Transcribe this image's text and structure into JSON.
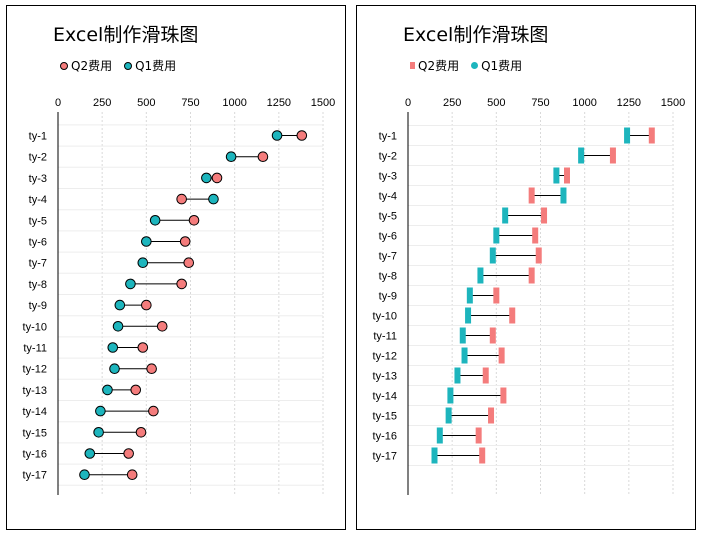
{
  "chart_data": [
    {
      "type": "scatter",
      "variant": "dumbbell",
      "marker": "circle",
      "title": "Excel制作滑珠图",
      "legend": [
        "Q2费用",
        "Q1费用"
      ],
      "legend_position": "top-left",
      "x_ticks": [
        "0",
        "250",
        "500",
        "750",
        "1000",
        "1250",
        "1500"
      ],
      "xlim": [
        0,
        1500
      ],
      "grid": true,
      "categories": [
        "ty-1",
        "ty-2",
        "ty-3",
        "ty-4",
        "ty-5",
        "ty-6",
        "ty-7",
        "ty-8",
        "ty-9",
        "ty-10",
        "ty-11",
        "ty-12",
        "ty-13",
        "ty-14",
        "ty-15",
        "ty-16",
        "ty-17"
      ],
      "series": [
        {
          "name": "Q2费用",
          "color": "#f47c7c",
          "values": [
            1380,
            1160,
            900,
            700,
            770,
            720,
            740,
            700,
            500,
            590,
            480,
            530,
            440,
            540,
            470,
            400,
            420
          ]
        },
        {
          "name": "Q1费用",
          "color": "#1db5bd",
          "values": [
            1240,
            980,
            840,
            880,
            550,
            500,
            480,
            410,
            350,
            340,
            310,
            320,
            280,
            240,
            230,
            180,
            150
          ]
        }
      ]
    },
    {
      "type": "scatter",
      "variant": "dumbbell",
      "marker": "bar",
      "title": "Excel制作滑珠图",
      "legend": [
        "Q2费用",
        "Q1费用"
      ],
      "legend_position": "top-left",
      "x_ticks": [
        "0",
        "250",
        "500",
        "750",
        "1000",
        "1250",
        "1500"
      ],
      "xlim": [
        0,
        1500
      ],
      "grid": true,
      "categories": [
        "ty-1",
        "ty-2",
        "ty-3",
        "ty-4",
        "ty-5",
        "ty-6",
        "ty-7",
        "ty-8",
        "ty-9",
        "ty-10",
        "ty-11",
        "ty-12",
        "ty-13",
        "ty-14",
        "ty-15",
        "ty-16",
        "ty-17"
      ],
      "series": [
        {
          "name": "Q2费用",
          "color": "#f47c7c",
          "values": [
            1380,
            1160,
            900,
            700,
            770,
            720,
            740,
            700,
            500,
            590,
            480,
            530,
            440,
            540,
            470,
            400,
            420
          ]
        },
        {
          "name": "Q1费用",
          "color": "#1db5bd",
          "values": [
            1240,
            980,
            840,
            880,
            550,
            500,
            480,
            410,
            350,
            340,
            310,
            320,
            280,
            240,
            230,
            180,
            150
          ]
        }
      ]
    }
  ]
}
